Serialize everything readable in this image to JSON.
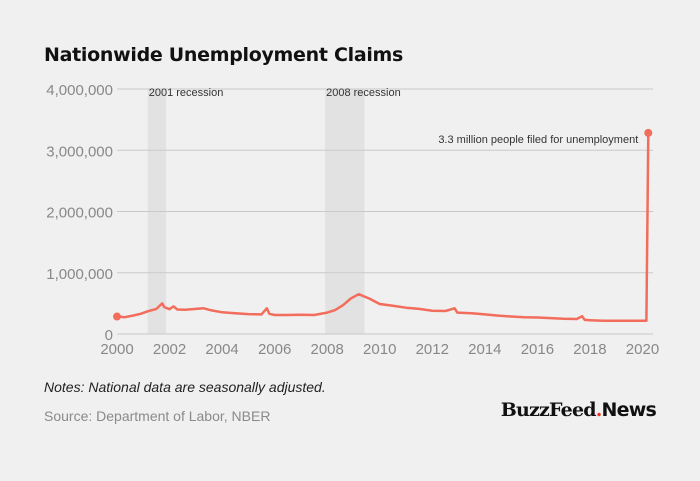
{
  "title": "Nationwide Unemployment Claims",
  "notes": "Notes: National data are seasonally adjusted.",
  "source": "Source: Department of Labor, NBER",
  "brand": {
    "name": "BuzzFeed",
    "dot": ".",
    "suffix": "News"
  },
  "colors": {
    "line": "#f26d5b",
    "recession_band": "#e2e2e2",
    "grid": "#c9c9c9",
    "axis_text": "#888888",
    "annotation_text": "#333333"
  },
  "chart_data": {
    "type": "line",
    "title": "Nationwide Unemployment Claims",
    "xlabel": "",
    "ylabel": "",
    "xlim": [
      2000,
      2020.4
    ],
    "ylim": [
      0,
      4000000
    ],
    "grid": true,
    "x_ticks": [
      2000,
      2002,
      2004,
      2006,
      2008,
      2010,
      2012,
      2014,
      2016,
      2018,
      2020
    ],
    "y_ticks": [
      0,
      1000000,
      2000000,
      3000000,
      4000000
    ],
    "y_tick_labels": [
      "0",
      "1,000,000",
      "2,000,000",
      "3,000,000",
      "4,000,000"
    ],
    "recessions": [
      {
        "label": "2001 recession",
        "start": 2001.17,
        "end": 2001.87
      },
      {
        "label": "2008 recession",
        "start": 2007.92,
        "end": 2009.42
      }
    ],
    "annotation": {
      "text": "3.3 million people filed for unemployment",
      "x": 2020.22,
      "y": 3283000
    },
    "series": [
      {
        "x": [
          2000.0,
          2000.3,
          2000.6,
          2000.9,
          2001.17,
          2001.5,
          2001.72,
          2001.8,
          2002.0,
          2002.15,
          2002.3,
          2002.6,
          2003.0,
          2003.3,
          2003.6,
          2004.0,
          2004.5,
          2005.0,
          2005.5,
          2005.7,
          2005.8,
          2006.0,
          2006.5,
          2007.0,
          2007.5,
          2008.0,
          2008.3,
          2008.6,
          2008.9,
          2009.2,
          2009.6,
          2010.0,
          2010.5,
          2011.0,
          2011.5,
          2012.0,
          2012.5,
          2012.85,
          2012.95,
          2013.5,
          2014.0,
          2014.5,
          2015.0,
          2015.5,
          2016.0,
          2016.5,
          2017.0,
          2017.5,
          2017.7,
          2017.8,
          2018.0,
          2018.5,
          2019.0,
          2019.5,
          2020.0,
          2020.15,
          2020.22
        ],
        "y": [
          285000,
          275000,
          300000,
          330000,
          370000,
          410000,
          500000,
          440000,
          405000,
          450000,
          400000,
          395000,
          410000,
          420000,
          385000,
          355000,
          340000,
          325000,
          320000,
          420000,
          330000,
          310000,
          310000,
          315000,
          310000,
          350000,
          390000,
          470000,
          580000,
          650000,
          580000,
          490000,
          460000,
          430000,
          410000,
          380000,
          375000,
          420000,
          350000,
          340000,
          320000,
          300000,
          285000,
          275000,
          270000,
          260000,
          250000,
          245000,
          290000,
          230000,
          225000,
          215000,
          215000,
          215000,
          215000,
          215000,
          3283000
        ]
      }
    ]
  }
}
